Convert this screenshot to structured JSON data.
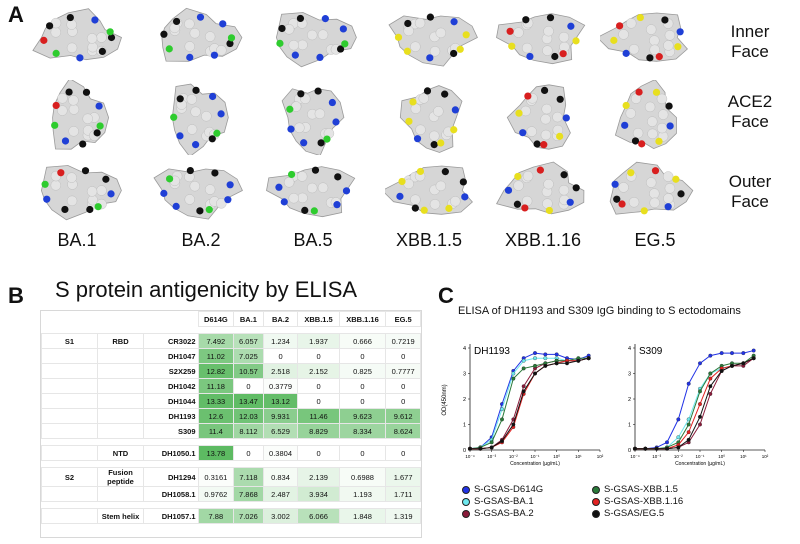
{
  "panels": {
    "a": "A",
    "b": "B",
    "c": "C"
  },
  "faces": [
    "Inner\nFace",
    "ACE2\nFace",
    "Outer\nFace"
  ],
  "variants": [
    "BA.1",
    "BA.2",
    "BA.5",
    "XBB.1.5",
    "XBB.1.16",
    "EG.5"
  ],
  "colors": {
    "highlight_blue": "#1f3fd6",
    "highlight_yellow": "#e8df1e",
    "highlight_red": "#d81f1f",
    "highlight_green": "#2ecc2e",
    "surface": "#d8d8d8"
  },
  "panel_b": {
    "title": "S protein antigenicity by ELISA",
    "columns": [
      "D614G",
      "BA.1",
      "BA.2",
      "XBB.1.5",
      "XBB.1.16",
      "EG.5"
    ],
    "groups": [
      {
        "region": "S1",
        "sub": "RBD",
        "rows": [
          {
            "ab": "CR3022",
            "vals": [
              "7.492",
              "6.057",
              "1.234",
              "1.937",
              "0.666",
              "0.7219"
            ]
          },
          {
            "ab": "DH1047",
            "vals": [
              "11.02",
              "7.025",
              "0",
              "0",
              "0",
              "0"
            ]
          },
          {
            "ab": "S2X259",
            "vals": [
              "12.82",
              "10.57",
              "2.518",
              "2.152",
              "0.825",
              "0.7777"
            ]
          },
          {
            "ab": "DH1042",
            "vals": [
              "11.18",
              "0",
              "0.3779",
              "0",
              "0",
              "0"
            ]
          },
          {
            "ab": "DH1044",
            "vals": [
              "13.33",
              "13.47",
              "13.12",
              "0",
              "0",
              "0"
            ]
          },
          {
            "ab": "DH1193",
            "vals": [
              "12.6",
              "12.03",
              "9.931",
              "11.46",
              "9.623",
              "9.612"
            ]
          },
          {
            "ab": "S309",
            "vals": [
              "11.4",
              "8.112",
              "6.529",
              "8.829",
              "8.334",
              "8.624"
            ]
          }
        ]
      },
      {
        "region": "",
        "sub": "NTD",
        "rows": [
          {
            "ab": "DH1050.1",
            "vals": [
              "13.78",
              "0",
              "0.3804",
              "0",
              "0",
              "0"
            ]
          }
        ]
      },
      {
        "region": "S2",
        "sub": "Fusion\npeptide",
        "rows": [
          {
            "ab": "DH1294",
            "vals": [
              "0.3161",
              "7.118",
              "0.834",
              "2.139",
              "0.6988",
              "1.677"
            ]
          },
          {
            "ab": "DH1058.1",
            "vals": [
              "0.9762",
              "7.868",
              "2.487",
              "3.934",
              "1.193",
              "1.711"
            ]
          }
        ]
      },
      {
        "region": "",
        "sub": "Stem helix",
        "rows": [
          {
            "ab": "DH1057.1",
            "vals": [
              "7.88",
              "7.026",
              "3.002",
              "6.066",
              "1.848",
              "1.319"
            ]
          }
        ]
      }
    ]
  },
  "panel_c": {
    "title": "ELISA of DH1193 and S309 IgG binding to S ectodomains",
    "ylabel": "OD(450nm)",
    "xlabel": "Concentration (µg/mL)",
    "subplots": [
      "DH1193",
      "S309"
    ],
    "yticks": [
      "0",
      "1",
      "2",
      "3",
      "4"
    ],
    "xticks": [
      "10⁻⁴",
      "10⁻³",
      "10⁻²",
      "10⁻¹",
      "10⁰",
      "10¹",
      "10²"
    ],
    "legend": [
      {
        "name": "S-GSAS-D614G",
        "color": "#2233e6"
      },
      {
        "name": "S-GSAS-XBB.1.5",
        "color": "#2a7a3a"
      },
      {
        "name": "S-GSAS-BA.1",
        "color": "#6ee8ee"
      },
      {
        "name": "S-GSAS-XBB.1.16",
        "color": "#e22222"
      },
      {
        "name": "S-GSAS-BA.2",
        "color": "#8a1b3a"
      },
      {
        "name": "S-GSAS/EG.5",
        "color": "#111111"
      }
    ]
  },
  "chart_data": [
    {
      "type": "line",
      "title": "DH1193",
      "xlabel": "Concentration (µg/mL)",
      "ylabel": "OD(450nm)",
      "xscale": "log",
      "ylim": [
        0,
        4
      ],
      "x": [
        0.0001,
        0.0003,
        0.001,
        0.003,
        0.01,
        0.03,
        0.1,
        0.3,
        1,
        3,
        10,
        30
      ],
      "series": [
        {
          "name": "S-GSAS-D614G",
          "values": [
            0.05,
            0.1,
            0.5,
            1.8,
            3.1,
            3.6,
            3.8,
            3.75,
            3.75,
            3.6,
            3.55,
            3.7
          ]
        },
        {
          "name": "S-GSAS-BA.1",
          "values": [
            0.05,
            0.1,
            0.4,
            1.6,
            3.0,
            3.5,
            3.6,
            3.6,
            3.6,
            3.5,
            3.5,
            3.6
          ]
        },
        {
          "name": "S-GSAS-BA.2",
          "values": [
            0.05,
            0.05,
            0.1,
            0.4,
            1.2,
            2.5,
            3.2,
            3.4,
            3.5,
            3.5,
            3.5,
            3.6
          ]
        },
        {
          "name": "S-GSAS-XBB.1.5",
          "values": [
            0.05,
            0.1,
            0.3,
            1.2,
            2.8,
            3.2,
            3.3,
            3.4,
            3.5,
            3.5,
            3.6,
            3.6
          ]
        },
        {
          "name": "S-GSAS-XBB.1.16",
          "values": [
            0.05,
            0.05,
            0.1,
            0.3,
            0.9,
            2.2,
            3.0,
            3.3,
            3.4,
            3.5,
            3.5,
            3.6
          ]
        },
        {
          "name": "S-GSAS/EG.5",
          "values": [
            0.05,
            0.05,
            0.1,
            0.35,
            1.0,
            2.3,
            3.0,
            3.3,
            3.4,
            3.4,
            3.5,
            3.6
          ]
        }
      ]
    },
    {
      "type": "line",
      "title": "S309",
      "xlabel": "Concentration (µg/mL)",
      "ylabel": "OD(450nm)",
      "xscale": "log",
      "ylim": [
        0,
        4
      ],
      "x": [
        0.0001,
        0.0003,
        0.001,
        0.003,
        0.01,
        0.03,
        0.1,
        0.3,
        1,
        3,
        10,
        30
      ],
      "series": [
        {
          "name": "S-GSAS-D614G",
          "values": [
            0.05,
            0.05,
            0.1,
            0.3,
            1.2,
            2.6,
            3.4,
            3.7,
            3.8,
            3.8,
            3.8,
            3.9
          ]
        },
        {
          "name": "S-GSAS-BA.1",
          "values": [
            0.05,
            0.05,
            0.05,
            0.1,
            0.5,
            1.2,
            2.4,
            3.0,
            3.2,
            3.3,
            3.4,
            3.6
          ]
        },
        {
          "name": "S-GSAS-BA.2",
          "values": [
            0.05,
            0.05,
            0.05,
            0.05,
            0.1,
            0.3,
            1.0,
            2.2,
            3.1,
            3.3,
            3.3,
            3.6
          ]
        },
        {
          "name": "S-GSAS-XBB.1.5",
          "values": [
            0.05,
            0.05,
            0.05,
            0.1,
            0.3,
            1.0,
            2.3,
            3.0,
            3.3,
            3.4,
            3.4,
            3.7
          ]
        },
        {
          "name": "S-GSAS-XBB.1.16",
          "values": [
            0.05,
            0.05,
            0.05,
            0.05,
            0.2,
            0.7,
            1.8,
            2.8,
            3.2,
            3.3,
            3.4,
            3.6
          ]
        },
        {
          "name": "S-GSAS/EG.5",
          "values": [
            0.05,
            0.05,
            0.05,
            0.05,
            0.1,
            0.4,
            1.3,
            2.5,
            3.1,
            3.3,
            3.4,
            3.6
          ]
        }
      ]
    }
  ]
}
